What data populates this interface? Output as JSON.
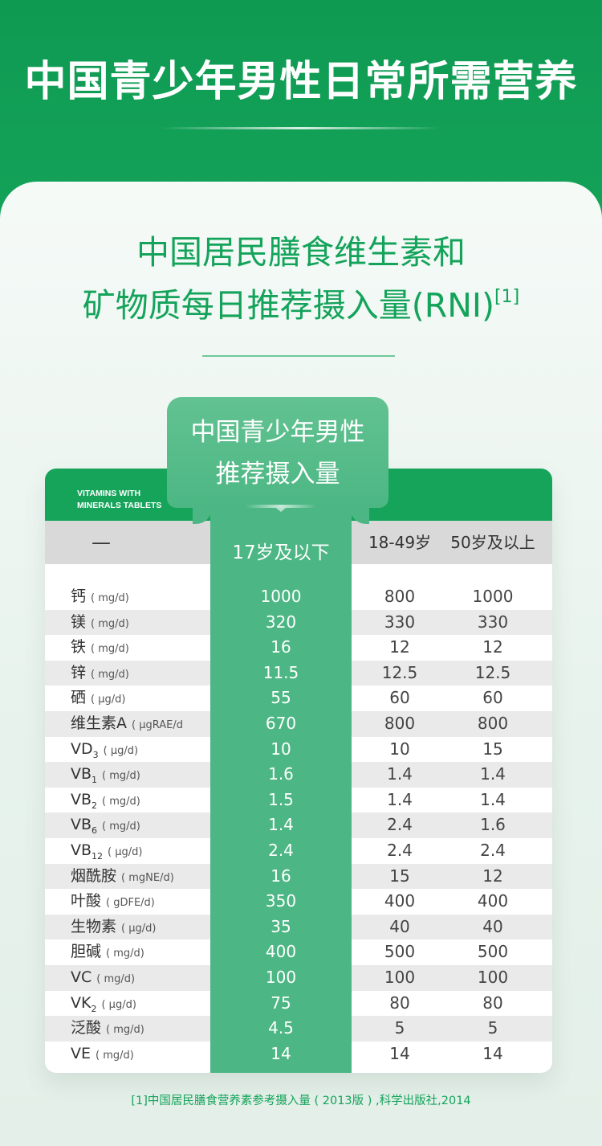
{
  "hero": {
    "title": "中国青少年男性日常所需营养"
  },
  "subtitle": {
    "line1": "中国居民膳食维生素和",
    "line2": "矿物质每日推荐摄入量(RNI)",
    "ref": "[1]"
  },
  "brand": {
    "line1": "VITAMINS WITH",
    "line2": "MINERALS TABLETS"
  },
  "highlight": {
    "title_line1": "中国青少年男性",
    "title_line2": "推荐摄入量"
  },
  "columns": {
    "c0": "—",
    "c_highlight": "17岁及以下",
    "c1": "18-49岁",
    "c2": "50岁及以上"
  },
  "rows": [
    {
      "name": "钙",
      "sub": "",
      "unit": "( mg/d)",
      "v0": "1000",
      "v1": "800",
      "v2": "1000"
    },
    {
      "name": "镁",
      "sub": "",
      "unit": "( mg/d)",
      "v0": "320",
      "v1": "330",
      "v2": "330"
    },
    {
      "name": "铁",
      "sub": "",
      "unit": "( mg/d)",
      "v0": "16",
      "v1": "12",
      "v2": "12"
    },
    {
      "name": "锌",
      "sub": "",
      "unit": "( mg/d)",
      "v0": "11.5",
      "v1": "12.5",
      "v2": "12.5"
    },
    {
      "name": "硒",
      "sub": "",
      "unit": "( μg/d)",
      "v0": "55",
      "v1": "60",
      "v2": "60"
    },
    {
      "name": "维生素A",
      "sub": "",
      "unit": "( μgRAE/d",
      "v0": "670",
      "v1": "800",
      "v2": "800"
    },
    {
      "name": "VD",
      "sub": "3",
      "unit": "( μg/d)",
      "v0": "10",
      "v1": "10",
      "v2": "15"
    },
    {
      "name": "VB",
      "sub": "1",
      "unit": "( mg/d)",
      "v0": "1.6",
      "v1": "1.4",
      "v2": "1.4"
    },
    {
      "name": "VB",
      "sub": "2",
      "unit": "( mg/d)",
      "v0": "1.5",
      "v1": "1.4",
      "v2": "1.4"
    },
    {
      "name": "VB",
      "sub": "6",
      "unit": "( mg/d)",
      "v0": "1.4",
      "v1": "2.4",
      "v2": "1.6"
    },
    {
      "name": "VB",
      "sub": "12",
      "unit": "( μg/d)",
      "v0": "2.4",
      "v1": "2.4",
      "v2": "2.4"
    },
    {
      "name": "烟酰胺",
      "sub": "",
      "unit": "( mgNE/d)",
      "v0": "16",
      "v1": "15",
      "v2": "12"
    },
    {
      "name": "叶酸",
      "sub": "",
      "unit": "( gDFE/d)",
      "v0": "350",
      "v1": "400",
      "v2": "400"
    },
    {
      "name": "生物素",
      "sub": "",
      "unit": "( μg/d)",
      "v0": "35",
      "v1": "40",
      "v2": "40"
    },
    {
      "name": "胆碱",
      "sub": "",
      "unit": "( mg/d)",
      "v0": "400",
      "v1": "500",
      "v2": "500"
    },
    {
      "name": "VC",
      "sub": "",
      "unit": "( mg/d)",
      "v0": "100",
      "v1": "100",
      "v2": "100"
    },
    {
      "name": "VK",
      "sub": "2",
      "unit": "( μg/d)",
      "v0": "75",
      "v1": "80",
      "v2": "80"
    },
    {
      "name": "泛酸",
      "sub": "",
      "unit": "( mg/d)",
      "v0": "4.5",
      "v1": "5",
      "v2": "5"
    },
    {
      "name": "VE",
      "sub": "",
      "unit": "( mg/d)",
      "v0": "14",
      "v1": "14",
      "v2": "14"
    }
  ],
  "footnote": "[1]中国居民膳食营养素参考摄入量 ( 2013版 ) ,科学出版社,2014"
}
